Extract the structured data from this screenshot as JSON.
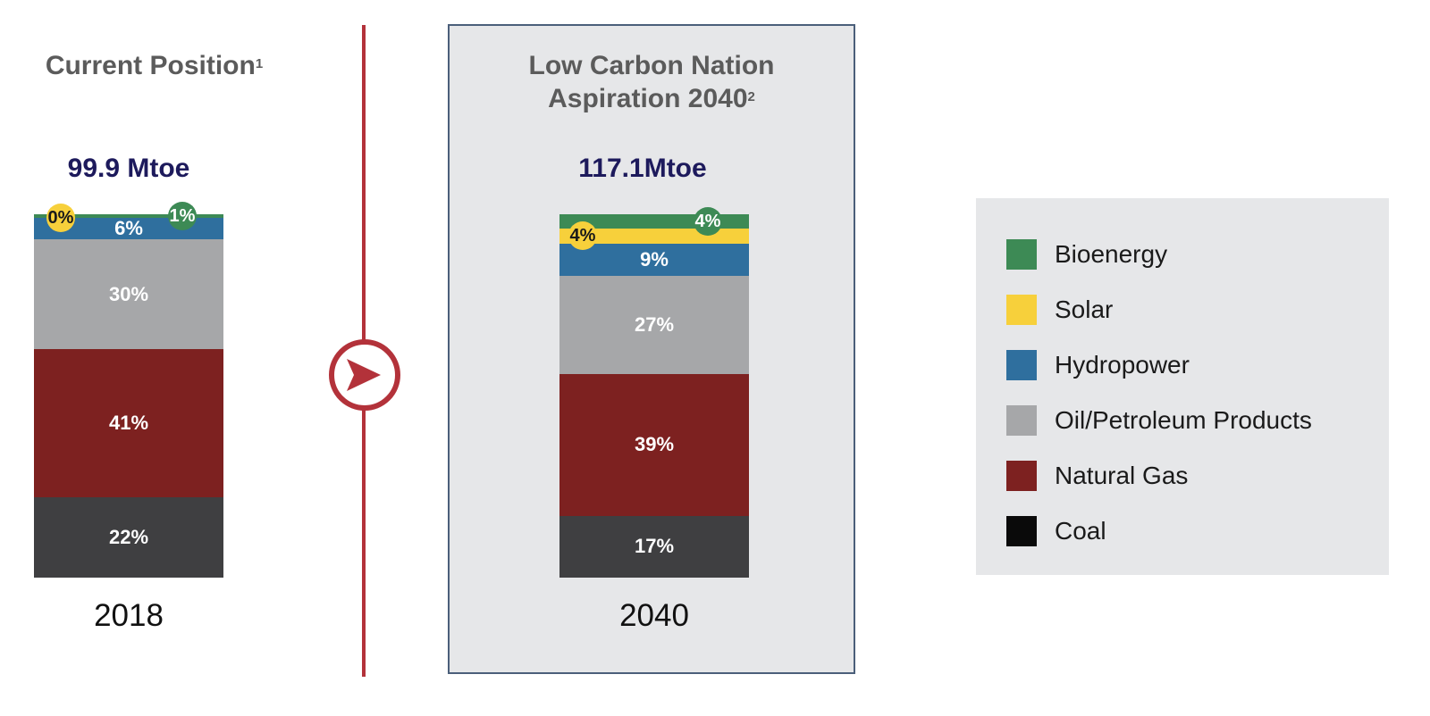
{
  "colors": {
    "Bioenergy": "#3d8a55",
    "Solar": "#f7d03b",
    "Hydropower": "#2f6f9e",
    "Oil/Petroleum Products": "#a6a7a9",
    "Natural Gas": "#7d2120",
    "Coal": "#3f3f41",
    "coal_swatch": "#0a0a0a"
  },
  "left": {
    "title": "Current Position",
    "title_sup": "1",
    "total": "99.9 Mtoe",
    "year": "2018"
  },
  "right": {
    "title_line1": "Low Carbon Nation",
    "title_line2": "Aspiration 2040",
    "title_sup": "2",
    "total": "117.1Mtoe",
    "year": "2040"
  },
  "legend": {
    "items": [
      "Bioenergy",
      "Solar",
      "Hydropower",
      "Oil/Petroleum Products",
      "Natural Gas",
      "Coal"
    ]
  },
  "chart_data": {
    "type": "bar",
    "stacked": true,
    "unit": "%",
    "categories": [
      "2018",
      "2040"
    ],
    "totals": [
      "99.9 Mtoe",
      "117.1Mtoe"
    ],
    "series": [
      {
        "name": "Coal",
        "values": [
          22,
          17
        ],
        "labels": [
          "22%",
          "17%"
        ]
      },
      {
        "name": "Natural Gas",
        "values": [
          41,
          39
        ],
        "labels": [
          "41%",
          "39%"
        ]
      },
      {
        "name": "Oil/Petroleum Products",
        "values": [
          30,
          27
        ],
        "labels": [
          "30%",
          "27%"
        ]
      },
      {
        "name": "Hydropower",
        "values": [
          6,
          9
        ],
        "labels": [
          "6%",
          "9%"
        ]
      },
      {
        "name": "Solar",
        "values": [
          0,
          4
        ],
        "labels": [
          "0%",
          "4%"
        ]
      },
      {
        "name": "Bioenergy",
        "values": [
          1,
          4
        ],
        "labels": [
          "1%",
          "4%"
        ]
      }
    ],
    "legend": "right"
  }
}
